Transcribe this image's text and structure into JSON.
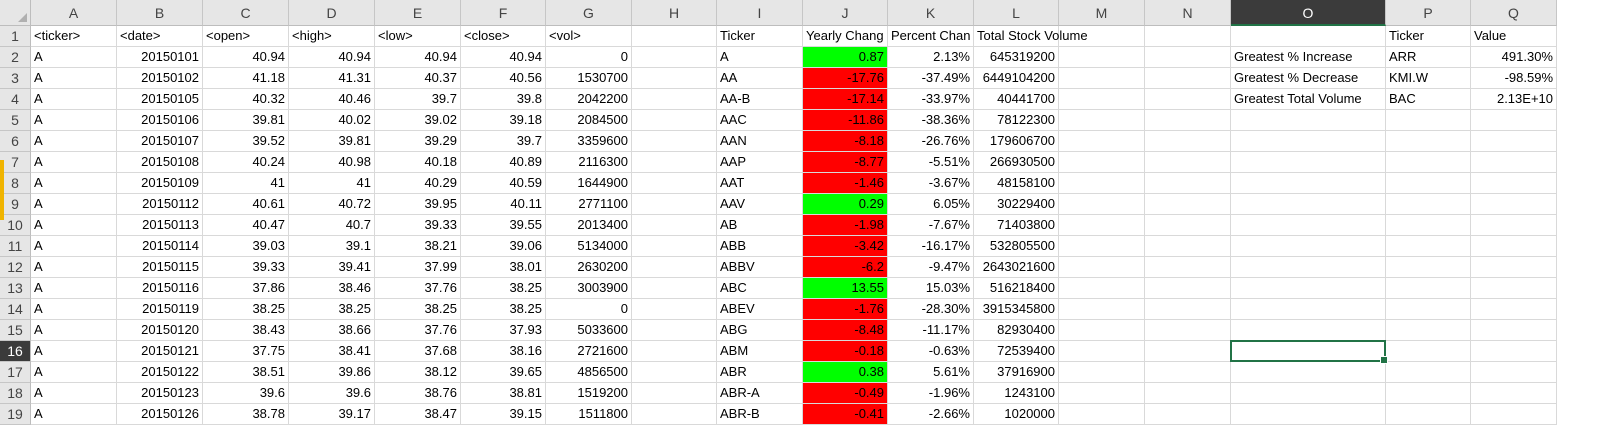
{
  "columns": [
    "A",
    "B",
    "C",
    "D",
    "E",
    "F",
    "G",
    "H",
    "I",
    "J",
    "K",
    "L",
    "M",
    "N",
    "O",
    "P",
    "Q"
  ],
  "active_column": "O",
  "row_numbers": [
    "1",
    "2",
    "3",
    "4",
    "5",
    "6",
    "7",
    "8",
    "9",
    "10",
    "11",
    "12",
    "13",
    "14",
    "15",
    "16",
    "17",
    "18",
    "19"
  ],
  "active_row": "16",
  "colors": {
    "positive": "#00ff00",
    "negative": "#ff0000",
    "selection": "#217346"
  },
  "headers": {
    "A": "<ticker>",
    "B": "<date>",
    "C": "<open>",
    "D": "<high>",
    "E": "<low>",
    "F": "<close>",
    "G": "<vol>",
    "I": "Ticker",
    "J": "Yearly Chang",
    "K": "Percent Chan",
    "L": "Total Stock Volume",
    "P": "Ticker",
    "Q": "Value"
  },
  "raw_rows": [
    [
      "A",
      "20150101",
      "40.94",
      "40.94",
      "40.94",
      "40.94",
      "0"
    ],
    [
      "A",
      "20150102",
      "41.18",
      "41.31",
      "40.37",
      "40.56",
      "1530700"
    ],
    [
      "A",
      "20150105",
      "40.32",
      "40.46",
      "39.7",
      "39.8",
      "2042200"
    ],
    [
      "A",
      "20150106",
      "39.81",
      "40.02",
      "39.02",
      "39.18",
      "2084500"
    ],
    [
      "A",
      "20150107",
      "39.52",
      "39.81",
      "39.29",
      "39.7",
      "3359600"
    ],
    [
      "A",
      "20150108",
      "40.24",
      "40.98",
      "40.18",
      "40.89",
      "2116300"
    ],
    [
      "A",
      "20150109",
      "41",
      "41",
      "40.29",
      "40.59",
      "1644900"
    ],
    [
      "A",
      "20150112",
      "40.61",
      "40.72",
      "39.95",
      "40.11",
      "2771100"
    ],
    [
      "A",
      "20150113",
      "40.47",
      "40.7",
      "39.33",
      "39.55",
      "2013400"
    ],
    [
      "A",
      "20150114",
      "39.03",
      "39.1",
      "38.21",
      "39.06",
      "5134000"
    ],
    [
      "A",
      "20150115",
      "39.33",
      "39.41",
      "37.99",
      "38.01",
      "2630200"
    ],
    [
      "A",
      "20150116",
      "37.86",
      "38.46",
      "37.76",
      "38.25",
      "3003900"
    ],
    [
      "A",
      "20150119",
      "38.25",
      "38.25",
      "38.25",
      "38.25",
      "0"
    ],
    [
      "A",
      "20150120",
      "38.43",
      "38.66",
      "37.76",
      "37.93",
      "5033600"
    ],
    [
      "A",
      "20150121",
      "37.75",
      "38.41",
      "37.68",
      "38.16",
      "2721600"
    ],
    [
      "A",
      "20150122",
      "38.51",
      "39.86",
      "38.12",
      "39.65",
      "4856500"
    ],
    [
      "A",
      "20150123",
      "39.6",
      "39.6",
      "38.76",
      "38.81",
      "1519200"
    ],
    [
      "A",
      "20150126",
      "38.78",
      "39.17",
      "38.47",
      "39.15",
      "1511800"
    ]
  ],
  "summary_rows": [
    {
      "ticker": "A",
      "yearly_change": "0.87",
      "percent_change": "2.13%",
      "volume": "645319200",
      "positive": true
    },
    {
      "ticker": "AA",
      "yearly_change": "-17.76",
      "percent_change": "-37.49%",
      "volume": "6449104200",
      "positive": false
    },
    {
      "ticker": "AA-B",
      "yearly_change": "-17.14",
      "percent_change": "-33.97%",
      "volume": "40441700",
      "positive": false
    },
    {
      "ticker": "AAC",
      "yearly_change": "-11.86",
      "percent_change": "-38.36%",
      "volume": "78122300",
      "positive": false
    },
    {
      "ticker": "AAN",
      "yearly_change": "-8.18",
      "percent_change": "-26.76%",
      "volume": "179606700",
      "positive": false
    },
    {
      "ticker": "AAP",
      "yearly_change": "-8.77",
      "percent_change": "-5.51%",
      "volume": "266930500",
      "positive": false
    },
    {
      "ticker": "AAT",
      "yearly_change": "-1.46",
      "percent_change": "-3.67%",
      "volume": "48158100",
      "positive": false
    },
    {
      "ticker": "AAV",
      "yearly_change": "0.29",
      "percent_change": "6.05%",
      "volume": "30229400",
      "positive": true
    },
    {
      "ticker": "AB",
      "yearly_change": "-1.98",
      "percent_change": "-7.67%",
      "volume": "71403800",
      "positive": false
    },
    {
      "ticker": "ABB",
      "yearly_change": "-3.42",
      "percent_change": "-16.17%",
      "volume": "532805500",
      "positive": false
    },
    {
      "ticker": "ABBV",
      "yearly_change": "-6.2",
      "percent_change": "-9.47%",
      "volume": "2643021600",
      "positive": false
    },
    {
      "ticker": "ABC",
      "yearly_change": "13.55",
      "percent_change": "15.03%",
      "volume": "516218400",
      "positive": true
    },
    {
      "ticker": "ABEV",
      "yearly_change": "-1.76",
      "percent_change": "-28.30%",
      "volume": "3915345800",
      "positive": false
    },
    {
      "ticker": "ABG",
      "yearly_change": "-8.48",
      "percent_change": "-11.17%",
      "volume": "82930400",
      "positive": false
    },
    {
      "ticker": "ABM",
      "yearly_change": "-0.18",
      "percent_change": "-0.63%",
      "volume": "72539400",
      "positive": false
    },
    {
      "ticker": "ABR",
      "yearly_change": "0.38",
      "percent_change": "5.61%",
      "volume": "37916900",
      "positive": true
    },
    {
      "ticker": "ABR-A",
      "yearly_change": "-0.49",
      "percent_change": "-1.96%",
      "volume": "1243100",
      "positive": false
    },
    {
      "ticker": "ABR-B",
      "yearly_change": "-0.41",
      "percent_change": "-2.66%",
      "volume": "1020000",
      "positive": false
    }
  ],
  "greatest": [
    {
      "label": "Greatest % Increase",
      "ticker": "ARR",
      "value": "491.30%"
    },
    {
      "label": "Greatest % Decrease",
      "ticker": "KMI.W",
      "value": "-98.59%"
    },
    {
      "label": "Greatest Total Volume",
      "ticker": "BAC",
      "value": "2.13E+10"
    }
  ]
}
